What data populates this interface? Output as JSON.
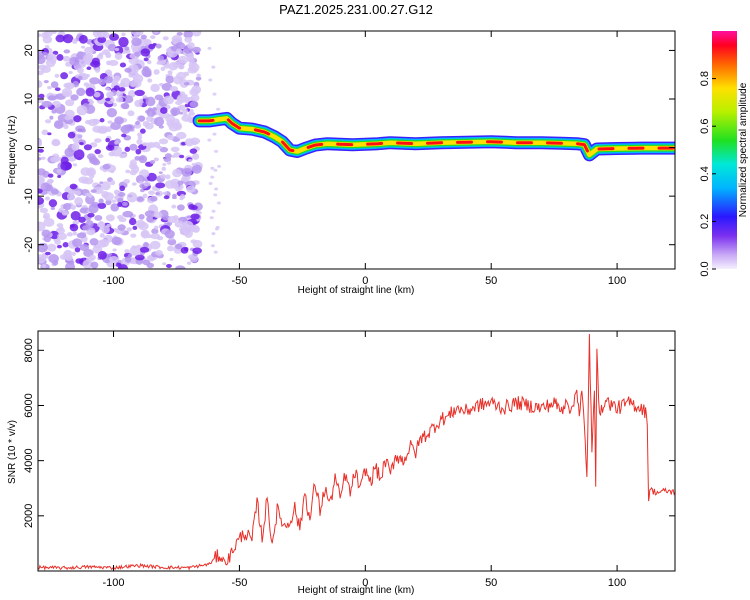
{
  "figure_title": "PAZ1.2025.231.00.27.G12",
  "colors": {
    "snr_line": "#e8312a",
    "axis": "#000000",
    "noise_light": "#d6c4f6",
    "noise_mid": "#b596ee",
    "noise_dark": "#6d1fe8"
  },
  "chart_data": [
    {
      "type": "heatmap",
      "title": "PAZ1.2025.231.00.27.G12",
      "xlabel": "Height of straight line (km)",
      "ylabel": "Frequency (Hz)",
      "xlim": [
        -130,
        123
      ],
      "ylim": [
        -25,
        24
      ],
      "x_ticks": [
        -100,
        -50,
        0,
        50,
        100
      ],
      "y_ticks": [
        -20,
        -10,
        0,
        10,
        20
      ],
      "colorbar": {
        "label": "Normalized spectral amplitude",
        "range": [
          0,
          1
        ],
        "ticks": [
          0.0,
          0.2,
          0.4,
          0.6,
          0.8
        ]
      },
      "noise_region_x": [
        -130,
        -66
      ],
      "signal_ridge": {
        "x": [
          -66,
          -62,
          -58,
          -55,
          -53,
          -50,
          -45,
          -40,
          -36,
          -33,
          -30,
          -27,
          -24,
          -20,
          -15,
          -10,
          -5,
          0,
          5,
          10,
          20,
          30,
          40,
          50,
          60,
          70,
          78,
          84,
          87,
          89,
          92,
          100,
          110,
          123
        ],
        "frequency": [
          5.5,
          5.5,
          5.8,
          6.0,
          5.0,
          4.0,
          3.8,
          3.2,
          2.2,
          1.2,
          -0.5,
          -0.8,
          -0.2,
          0.5,
          0.8,
          0.7,
          0.6,
          0.7,
          0.8,
          1.0,
          0.8,
          1.0,
          1.1,
          1.2,
          1.0,
          1.0,
          0.9,
          0.8,
          0.6,
          -1.5,
          -0.3,
          -0.2,
          -0.1,
          -0.1
        ]
      }
    },
    {
      "type": "line",
      "xlabel": "Height of straight line (km)",
      "ylabel": "SNR (10 * v/v)",
      "xlim": [
        -130,
        123
      ],
      "ylim": [
        0,
        8700
      ],
      "x_ticks": [
        -100,
        -50,
        0,
        50,
        100
      ],
      "y_ticks": [
        2000,
        4000,
        6000,
        8000
      ],
      "series": [
        {
          "name": "SNR",
          "x": [
            -130,
            -120,
            -110,
            -100,
            -90,
            -80,
            -70,
            -62,
            -58,
            -55,
            -52,
            -48,
            -45,
            -43,
            -41,
            -39,
            -37,
            -35,
            -32,
            -30,
            -28,
            -26,
            -24,
            -22,
            -20,
            -18,
            -16,
            -14,
            -12,
            -10,
            -8,
            -6,
            -4,
            -2,
            0,
            2,
            4,
            6,
            8,
            10,
            12,
            15,
            18,
            20,
            22,
            25,
            28,
            30,
            33,
            36,
            40,
            45,
            50,
            55,
            60,
            65,
            70,
            75,
            78,
            80,
            82,
            84,
            85,
            86,
            87,
            88,
            89,
            90,
            91,
            91.5,
            92,
            93,
            95,
            100,
            105,
            110,
            111,
            112,
            112.5,
            113,
            114,
            116,
            120,
            123
          ],
          "values": [
            130,
            110,
            150,
            120,
            200,
            130,
            120,
            250,
            600,
            250,
            900,
            1400,
            1100,
            2500,
            1200,
            2600,
            1000,
            2200,
            1600,
            1800,
            2300,
            1500,
            2900,
            1800,
            3200,
            2200,
            3000,
            2400,
            3400,
            2600,
            3500,
            2800,
            3600,
            2900,
            3700,
            3200,
            3800,
            3300,
            4000,
            3500,
            4200,
            4000,
            4500,
            4300,
            4800,
            5000,
            5300,
            5500,
            5600,
            5900,
            5800,
            6000,
            6100,
            5900,
            6100,
            6000,
            5900,
            6100,
            5800,
            6300,
            5700,
            6700,
            5700,
            6500,
            5200,
            3300,
            8500,
            4300,
            6400,
            3300,
            8300,
            5500,
            6200,
            5900,
            6100,
            5900,
            5800,
            5500,
            2500,
            3000,
            2900,
            2850,
            2900,
            2850
          ]
        }
      ]
    }
  ]
}
